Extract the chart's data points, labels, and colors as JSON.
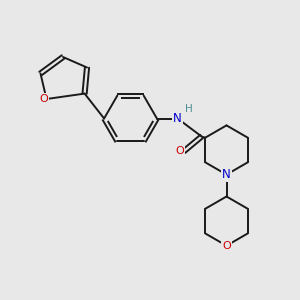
{
  "background_color": "#e8e8e8",
  "bond_color": "#1a1a1a",
  "atom_colors": {
    "O": "#cc0000",
    "N": "#0000cc",
    "H": "#4a9090",
    "C": "#1a1a1a"
  },
  "figsize": [
    3.0,
    3.0
  ],
  "dpi": 100,
  "lw": 1.4
}
